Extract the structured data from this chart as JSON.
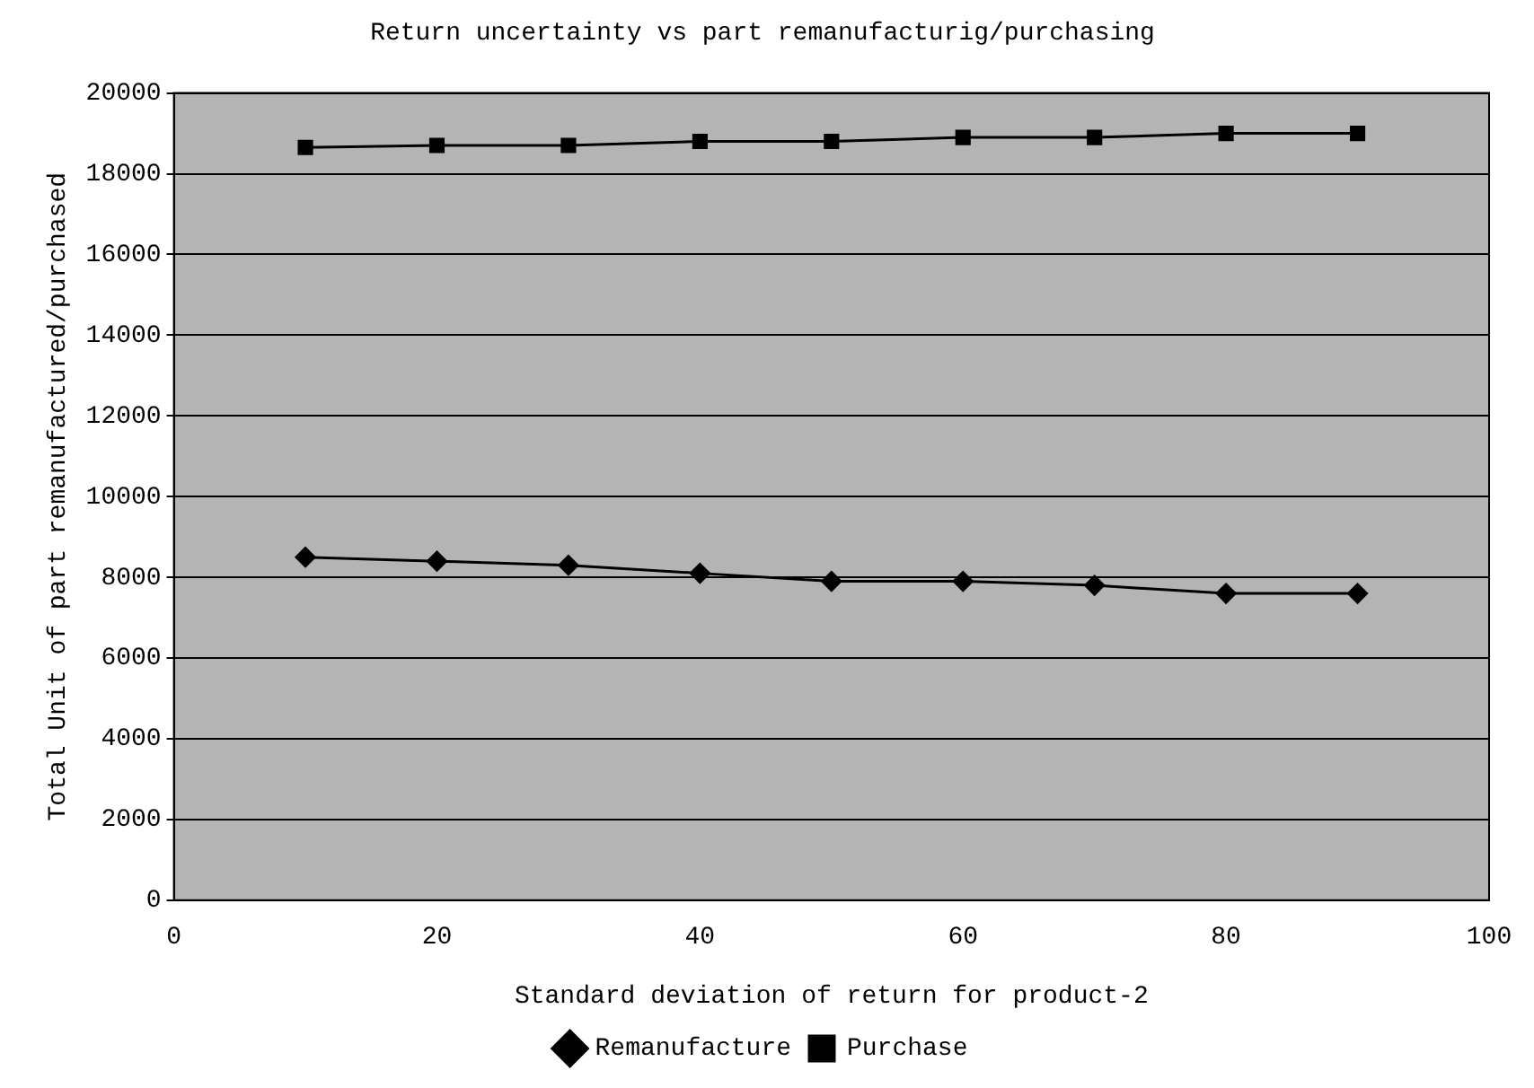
{
  "chart_data": {
    "type": "line",
    "title": "Return uncertainty vs part remanufacturig/purchasing",
    "xlabel": "Standard deviation of return for product-2",
    "ylabel": "Total Unit of part remanufactured/purchased",
    "x": [
      10,
      20,
      30,
      40,
      50,
      60,
      70,
      80,
      90
    ],
    "series": [
      {
        "name": "Remanufacture",
        "color": "#000000",
        "marker": "diamond",
        "values": [
          8500,
          8400,
          8300,
          8100,
          7900,
          7900,
          7800,
          7600,
          7600
        ]
      },
      {
        "name": "Purchase",
        "color": "#000000",
        "marker": "square",
        "values": [
          18650,
          18700,
          18700,
          18800,
          18800,
          18900,
          18900,
          19000,
          19000
        ]
      }
    ],
    "xlim": [
      0,
      100
    ],
    "xticks": [
      0,
      20,
      40,
      60,
      80,
      100
    ],
    "ylim": [
      0,
      20000
    ],
    "yticks": [
      0,
      2000,
      4000,
      6000,
      8000,
      10000,
      12000,
      14000,
      16000,
      18000,
      20000
    ],
    "grid": "y",
    "legend": "bottom"
  }
}
